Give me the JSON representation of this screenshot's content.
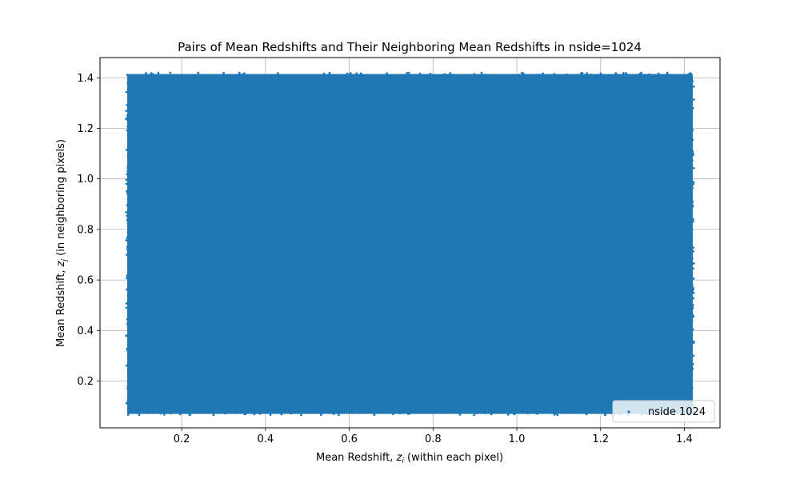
{
  "chart_data": {
    "type": "scatter",
    "title": "Pairs of Mean Redshifts and Their Neighboring Mean Redshifts in nside=1024",
    "xlabel": "Mean Redshift, z_i (within each pixel)",
    "xlabel_parts": {
      "pre": "Mean Redshift, ",
      "var": "z",
      "sub": "i",
      "post": " (within each pixel)"
    },
    "ylabel": "Mean Redshift, z_j (in neighboring pixels)",
    "ylabel_parts": {
      "pre": "Mean Redshift, ",
      "var": "z",
      "sub": "j",
      "post": " (in neighboring pixels)"
    },
    "xlim": [
      0.005,
      1.485
    ],
    "ylim": [
      0.015,
      1.48
    ],
    "xticks": [
      0.2,
      0.4,
      0.6,
      0.8,
      1.0,
      1.2,
      1.4
    ],
    "xtick_labels": [
      "0.2",
      "0.4",
      "0.6",
      "0.8",
      "1.0",
      "1.2",
      "1.4"
    ],
    "yticks": [
      0.2,
      0.4,
      0.6,
      0.8,
      1.0,
      1.2,
      1.4
    ],
    "ytick_labels": [
      "0.2",
      "0.4",
      "0.6",
      "0.8",
      "1.0",
      "1.2",
      "1.4"
    ],
    "grid": true,
    "legend_position": "lower-right",
    "series": [
      {
        "name": "nside 1024",
        "color": "#1f77b4",
        "x_range": [
          0.07,
          1.42
        ],
        "y_range": [
          0.07,
          1.415
        ]
      }
    ]
  }
}
